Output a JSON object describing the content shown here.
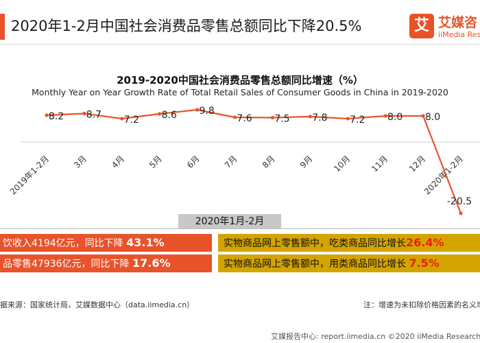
{
  "header": {
    "title": "2020年1-2月中国社会消费品零售总额同比下降20.5%",
    "logo_mark": "艾",
    "logo_cn": "艾媒咨",
    "logo_en": "iiMedia Resear"
  },
  "chart_data": {
    "type": "line",
    "title": "2019-2020中国社会消费品零售总额同比增速（%）",
    "subtitle": "Monthly Year on Year Growth Rate of Total Retail Sales of Consumer Goods in China in 2019-2020",
    "categories": [
      "2019年1-2月",
      "3月",
      "4月",
      "5月",
      "6月",
      "7月",
      "8月",
      "9月",
      "10月",
      "11月",
      "12月",
      "2020年1-2月"
    ],
    "values": [
      8.2,
      8.7,
      7.2,
      8.6,
      9.8,
      7.6,
      7.5,
      7.8,
      7.2,
      8.0,
      8.0,
      -20.5
    ],
    "data_labels": [
      "8.2",
      "8.7",
      "7.2",
      "8.6",
      "9.8",
      "7.6",
      "7.5",
      "7.8",
      "7.2",
      "8.0",
      "8.0",
      "-20.5"
    ],
    "xlabel": "",
    "ylabel": "",
    "ylim": [
      -20.5,
      9.8
    ],
    "grid": false,
    "color": "#e8532a"
  },
  "highlights": {
    "period_label": "2020年1月-2月",
    "left": [
      {
        "text": "饮收入4194亿元，同比下降 ",
        "value": "43.1%"
      },
      {
        "text": "品零售47936亿元，同比下降 ",
        "value": "17.6%"
      }
    ],
    "right": [
      {
        "text": "实物商品网上零售额中，吃类商品同比增长",
        "value": "26.4%"
      },
      {
        "text": "实物商品网上零售额中，用类商品同比增长 ",
        "value": "7.5%"
      }
    ]
  },
  "footer": {
    "source": "据来源：国家统计局，艾媒数据中心（data.iimedia.cn）",
    "note": "注：增速为未扣除价格因素的名义增",
    "brand": "艾媒报告中心: report.iimedia.cn ©2020 iiMedia Research"
  }
}
